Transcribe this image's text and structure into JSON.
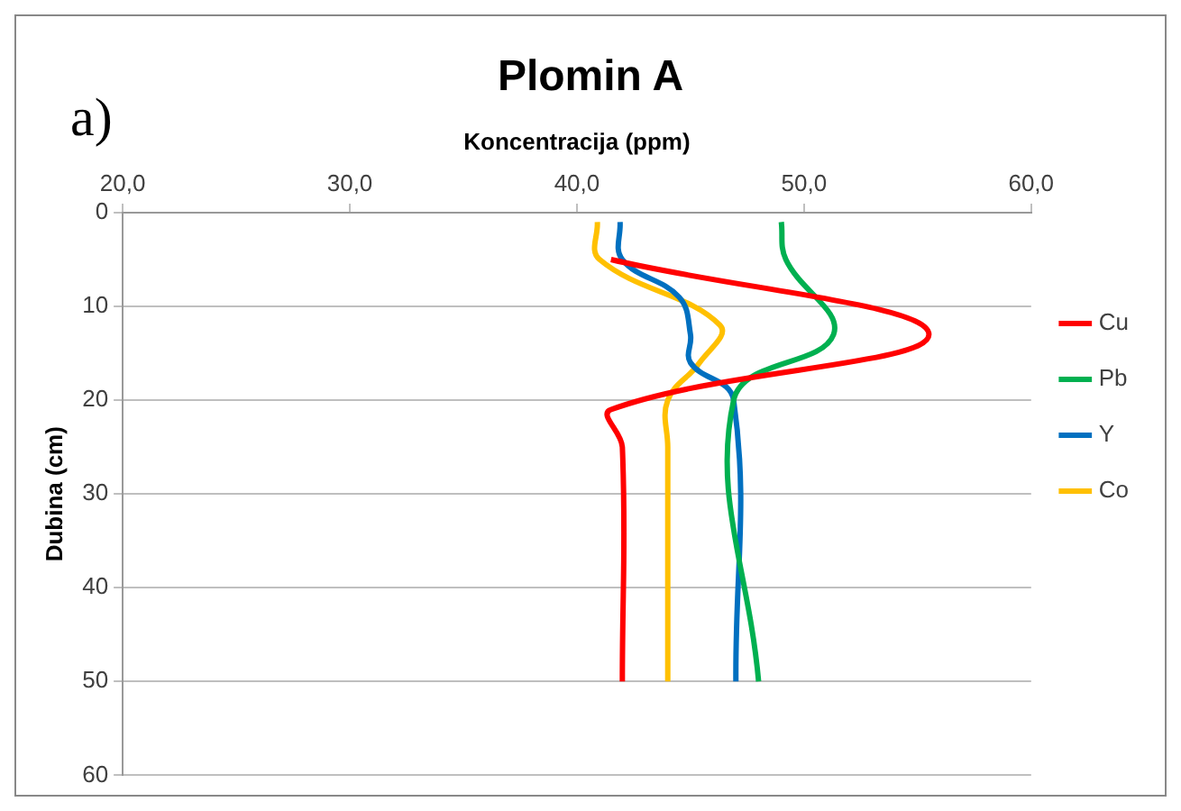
{
  "chart_data": {
    "type": "line",
    "title": "Plomin A",
    "xlabel": "Koncentracija (ppm)",
    "ylabel": "Dubina (cm)",
    "annotations": [
      "a)"
    ],
    "xlim": [
      20,
      60
    ],
    "xticks": [
      {
        "value": 20,
        "label": "20,0"
      },
      {
        "value": 30,
        "label": "30,0"
      },
      {
        "value": 40,
        "label": "40,0"
      },
      {
        "value": 50,
        "label": "50,0"
      },
      {
        "value": 60,
        "label": "60,0"
      }
    ],
    "ylim": [
      60,
      0
    ],
    "yticks": [
      0,
      10,
      20,
      30,
      40,
      50,
      60
    ],
    "grid": "y",
    "legend": "right",
    "marker": "none",
    "series": [
      {
        "name": "Cu",
        "color": "#ff0000",
        "x": [
          41.5,
          55.5,
          41.5,
          42,
          42
        ],
        "values": [
          5,
          13,
          21,
          25,
          50
        ]
      },
      {
        "name": "Pb",
        "color": "#00b050",
        "x": [
          49,
          49.2,
          51.3,
          46.9,
          48
        ],
        "values": [
          1,
          5,
          13,
          20,
          50
        ]
      },
      {
        "name": "Y",
        "color": "#0070c0",
        "x": [
          41.9,
          42,
          44.5,
          45,
          45,
          46.9,
          47
        ],
        "values": [
          1,
          5,
          9,
          13,
          16,
          20,
          50
        ]
      },
      {
        "name": "Co",
        "color": "#ffc000",
        "x": [
          40.9,
          41,
          46.3,
          45.4,
          44,
          44,
          44
        ],
        "values": [
          1,
          5,
          12,
          16,
          20,
          25,
          50
        ]
      }
    ]
  }
}
